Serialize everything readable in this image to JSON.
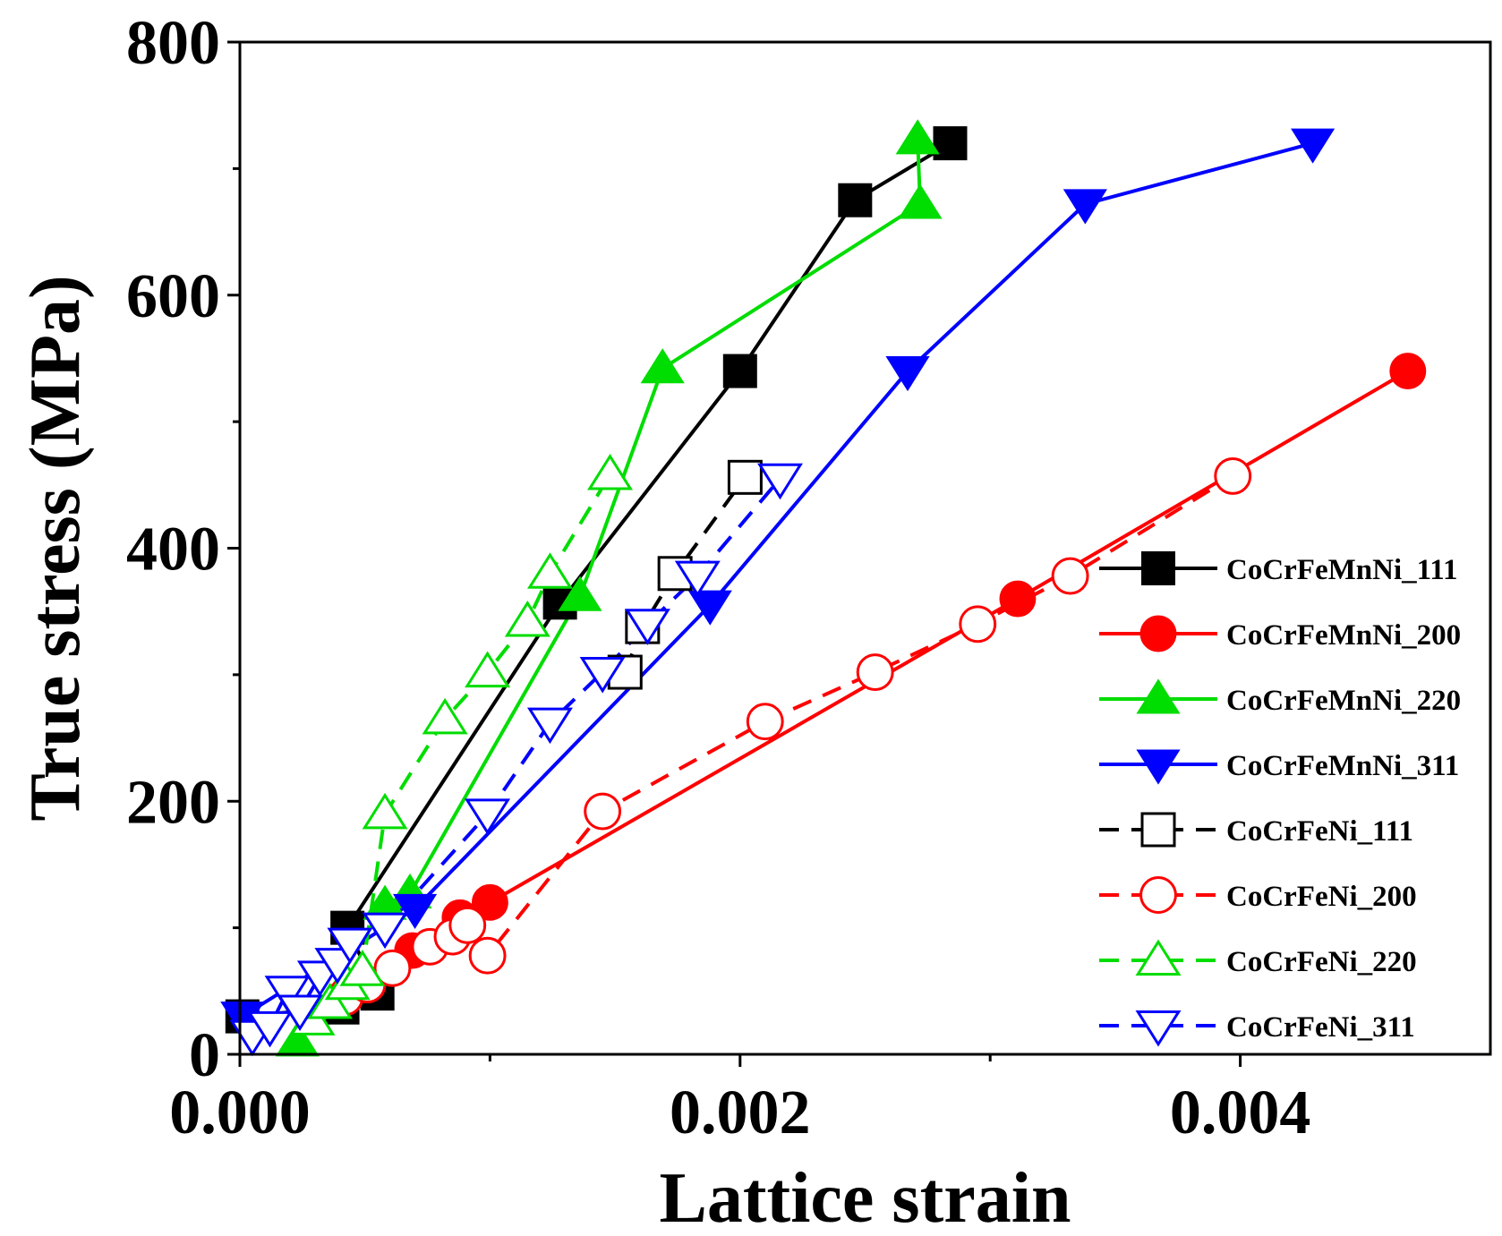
{
  "chart_data": {
    "type": "line",
    "title": "",
    "xlabel": "Lattice strain",
    "ylabel": "True stress (MPa)",
    "xlim": [
      0.0,
      0.005
    ],
    "ylim": [
      0,
      800
    ],
    "x_ticks": [
      0.0,
      0.002,
      0.004
    ],
    "x_tick_labels": [
      "0.000",
      "0.002",
      "0.004"
    ],
    "y_ticks": [
      0,
      200,
      400,
      600,
      800
    ],
    "y_tick_labels": [
      "0",
      "200",
      "400",
      "600",
      "800"
    ],
    "legend_position": "right",
    "series": [
      {
        "name": "CoCrFeMnNi_111",
        "color": "#000000",
        "marker": "square",
        "filled": true,
        "dashed": false,
        "points": [
          [
            1e-05,
            30
          ],
          [
            0.00041,
            37
          ],
          [
            0.00055,
            48
          ],
          [
            0.00043,
            100
          ],
          [
            0.00128,
            357
          ],
          [
            0.002,
            540
          ],
          [
            0.00246,
            675
          ],
          [
            0.00284,
            720
          ]
        ]
      },
      {
        "name": "CoCrFeMnNi_200",
        "color": "#ff0000",
        "marker": "circle",
        "filled": true,
        "dashed": false,
        "points": [
          [
            0.00069,
            82
          ],
          [
            0.00088,
            108
          ],
          [
            0.001,
            120
          ],
          [
            0.00311,
            360
          ],
          [
            0.00467,
            540
          ]
        ]
      },
      {
        "name": "CoCrFeMnNi_220",
        "color": "#00dd00",
        "marker": "triangle-up",
        "filled": true,
        "dashed": false,
        "points": [
          [
            0.00023,
            10
          ],
          [
            0.00058,
            118
          ],
          [
            0.00068,
            127
          ],
          [
            0.00136,
            362
          ],
          [
            0.00169,
            542
          ],
          [
            0.00272,
            672
          ],
          [
            0.00271,
            723
          ]
        ]
      },
      {
        "name": "CoCrFeMnNi_311",
        "color": "#0000ff",
        "marker": "triangle-down",
        "filled": true,
        "dashed": false,
        "points": [
          [
            1e-05,
            30
          ],
          [
            0.0007,
            115
          ],
          [
            0.00188,
            355
          ],
          [
            0.00267,
            540
          ],
          [
            0.00338,
            672
          ],
          [
            0.00429,
            720
          ]
        ]
      },
      {
        "name": "CoCrFeNi_111",
        "color": "#000000",
        "marker": "square",
        "filled": false,
        "dashed": true,
        "points": [
          [
            0.00154,
            302
          ],
          [
            0.00161,
            338
          ],
          [
            0.00174,
            380
          ],
          [
            0.00202,
            456
          ]
        ]
      },
      {
        "name": "CoCrFeNi_200",
        "color": "#ff0000",
        "marker": "circle",
        "filled": false,
        "dashed": true,
        "points": [
          [
            0.00042,
            45
          ],
          [
            0.00051,
            55
          ],
          [
            0.00061,
            68
          ],
          [
            0.00076,
            85
          ],
          [
            0.00085,
            93
          ],
          [
            0.00091,
            102
          ],
          [
            0.00099,
            78
          ],
          [
            0.00145,
            192
          ],
          [
            0.0021,
            263
          ],
          [
            0.00254,
            302
          ],
          [
            0.00295,
            340
          ],
          [
            0.00332,
            378
          ],
          [
            0.00397,
            457
          ]
        ]
      },
      {
        "name": "CoCrFeNi_220",
        "color": "#00dd00",
        "marker": "triangle-up",
        "filled": false,
        "dashed": true,
        "points": [
          [
            0.00029,
            27
          ],
          [
            0.00036,
            40
          ],
          [
            0.00043,
            55
          ],
          [
            0.00049,
            66
          ],
          [
            0.00058,
            190
          ],
          [
            0.00082,
            265
          ],
          [
            0.00099,
            302
          ],
          [
            0.00115,
            342
          ],
          [
            0.00124,
            380
          ],
          [
            0.00148,
            458
          ]
        ]
      },
      {
        "name": "CoCrFeNi_311",
        "color": "#0000ff",
        "marker": "triangle-down",
        "filled": false,
        "dashed": true,
        "points": [
          [
            5e-05,
            15
          ],
          [
            0.00012,
            22
          ],
          [
            0.00019,
            50
          ],
          [
            0.00024,
            35
          ],
          [
            0.00032,
            62
          ],
          [
            0.00039,
            72
          ],
          [
            0.00044,
            88
          ],
          [
            0.00058,
            100
          ],
          [
            0.00099,
            190
          ],
          [
            0.00124,
            262
          ],
          [
            0.00145,
            302
          ],
          [
            0.00163,
            340
          ],
          [
            0.00183,
            378
          ],
          [
            0.00216,
            455
          ]
        ]
      }
    ]
  }
}
